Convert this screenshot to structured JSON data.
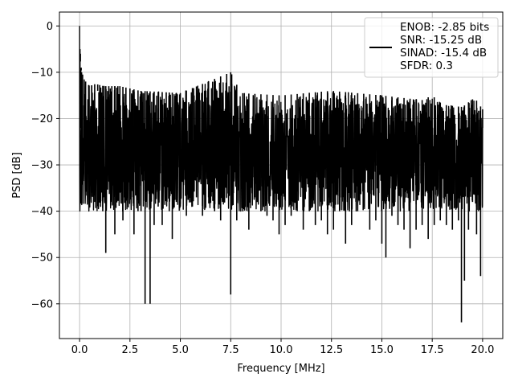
{
  "chart_data": {
    "type": "line",
    "title": "",
    "xlabel": "Frequency [MHz]",
    "ylabel": "PSD [dB]",
    "xlim": [
      -1.0,
      21.0
    ],
    "ylim": [
      -67.5,
      3.0
    ],
    "xticks": [
      0.0,
      2.5,
      5.0,
      7.5,
      10.0,
      12.5,
      15.0,
      17.5,
      20.0
    ],
    "xtick_labels": [
      "0.0",
      "2.5",
      "5.0",
      "7.5",
      "10.0",
      "12.5",
      "15.0",
      "17.5",
      "20.0"
    ],
    "yticks": [
      0,
      -10,
      -20,
      -30,
      -40,
      -50,
      -60
    ],
    "ytick_labels": [
      "0",
      "−10",
      "−20",
      "−30",
      "−40",
      "−50",
      "−60"
    ],
    "grid": true,
    "legend_position": "top-right",
    "series": [
      {
        "legend_lines": [
          "ENOB: -2.85 bits",
          "SNR: -15.25 dB",
          "SINAD: -15.4 dB",
          "SFDR: 0.3"
        ],
        "color": "#000000",
        "x": [
          0.0,
          0.02,
          0.04,
          0.06,
          0.08,
          0.1,
          0.15,
          0.2,
          0.3,
          0.45,
          0.6,
          0.75,
          0.9,
          1.0,
          1.15,
          1.3,
          1.45,
          1.6,
          1.75,
          1.9,
          2.0,
          2.15,
          2.3,
          2.5,
          2.7,
          2.9,
          3.05,
          3.25,
          3.35,
          3.5,
          3.7,
          3.9,
          4.1,
          4.3,
          4.45,
          4.6,
          4.8,
          5.0,
          5.3,
          5.6,
          5.8,
          6.1,
          6.4,
          6.7,
          7.0,
          7.3,
          7.5,
          7.55,
          7.8,
          8.1,
          8.4,
          8.7,
          9.0,
          9.3,
          9.6,
          9.9,
          10.2,
          10.5,
          10.8,
          11.1,
          11.4,
          11.7,
          12.0,
          12.3,
          12.6,
          12.9,
          13.2,
          13.5,
          13.8,
          14.1,
          14.4,
          14.7,
          15.0,
          15.2,
          15.5,
          15.8,
          16.1,
          16.4,
          16.7,
          17.0,
          17.3,
          17.6,
          17.9,
          18.2,
          18.5,
          18.8,
          18.95,
          19.1,
          19.3,
          19.5,
          19.7,
          19.9,
          20.0
        ],
        "y": [
          0.0,
          -24.0,
          -6.0,
          -22.0,
          -9.0,
          -23.0,
          -27.0,
          -11.0,
          -26.0,
          -30.0,
          -36.0,
          -38.0,
          -14.0,
          -38.0,
          -40.0,
          -49.0,
          -27.0,
          -38.0,
          -45.0,
          -16.0,
          -36.0,
          -42.0,
          -34.0,
          -36.0,
          -45.0,
          -40.0,
          -40.0,
          -60.0,
          -30.0,
          -60.0,
          -43.0,
          -39.0,
          -43.0,
          -36.0,
          -40.0,
          -46.0,
          -38.0,
          -39.0,
          -41.0,
          -39.0,
          -37.0,
          -41.0,
          -37.0,
          -40.0,
          -42.0,
          -37.0,
          -58.0,
          -29.0,
          -42.0,
          -40.0,
          -44.0,
          -37.0,
          -40.0,
          -41.0,
          -42.0,
          -45.0,
          -43.0,
          -41.0,
          -40.0,
          -44.0,
          -40.0,
          -43.0,
          -42.0,
          -45.0,
          -44.0,
          -40.0,
          -47.0,
          -43.0,
          -40.0,
          -39.0,
          -44.0,
          -42.0,
          -47.0,
          -50.0,
          -41.0,
          -43.0,
          -44.0,
          -48.0,
          -44.0,
          -43.0,
          -46.0,
          -43.0,
          -42.0,
          -43.0,
          -44.0,
          -42.0,
          -64.0,
          -55.0,
          -44.0,
          -38.0,
          -45.0,
          -54.0,
          -22.0
        ],
        "upper_envelope": {
          "x": [
            0.0,
            0.02,
            0.05,
            0.1,
            0.2,
            0.3,
            0.5,
            0.8,
            1.2,
            2.0,
            3.0,
            5.0,
            7.5,
            8.0,
            10.0,
            12.5,
            15.0,
            17.0,
            17.5,
            18.0,
            19.0,
            19.6,
            20.0
          ],
          "y": [
            0.0,
            -5.0,
            -9.0,
            -10.0,
            -11.0,
            -12.0,
            -13.0,
            -12.5,
            -13.0,
            -13.0,
            -14.0,
            -14.5,
            -10.0,
            -14.5,
            -15.0,
            -14.0,
            -15.0,
            -16.0,
            -15.0,
            -17.0,
            -17.5,
            -15.5,
            -18.0
          ]
        },
        "noise_floor": -28.0
      }
    ]
  }
}
